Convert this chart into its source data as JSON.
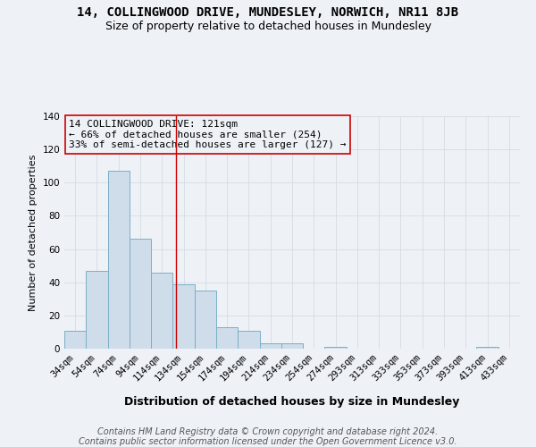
{
  "title": "14, COLLINGWOOD DRIVE, MUNDESLEY, NORWICH, NR11 8JB",
  "subtitle": "Size of property relative to detached houses in Mundesley",
  "xlabel": "Distribution of detached houses by size in Mundesley",
  "ylabel": "Number of detached properties",
  "bar_labels": [
    "34sqm",
    "54sqm",
    "74sqm",
    "94sqm",
    "114sqm",
    "134sqm",
    "154sqm",
    "174sqm",
    "194sqm",
    "214sqm",
    "234sqm",
    "254sqm",
    "274sqm",
    "293sqm",
    "313sqm",
    "333sqm",
    "353sqm",
    "373sqm",
    "393sqm",
    "413sqm",
    "433sqm"
  ],
  "bar_values": [
    11,
    47,
    107,
    66,
    46,
    39,
    35,
    13,
    11,
    3,
    3,
    0,
    1,
    0,
    0,
    0,
    0,
    0,
    0,
    1,
    0
  ],
  "bar_color": "#cfdcea",
  "bar_edge_color": "#7aafc8",
  "annotation_box_text": "14 COLLINGWOOD DRIVE: 121sqm\n← 66% of detached houses are smaller (254)\n33% of semi-detached houses are larger (127) →",
  "annotation_box_edge_color": "#cc0000",
  "vline_x": 4.65,
  "vline_color": "#cc0000",
  "ylim": [
    0,
    140
  ],
  "yticks": [
    0,
    20,
    40,
    60,
    80,
    100,
    120,
    140
  ],
  "footer_line1": "Contains HM Land Registry data © Crown copyright and database right 2024.",
  "footer_line2": "Contains public sector information licensed under the Open Government Licence v3.0.",
  "background_color": "#eef2f7",
  "grid_color": "#d0d8e0",
  "title_fontsize": 10,
  "subtitle_fontsize": 9,
  "xlabel_fontsize": 9,
  "ylabel_fontsize": 8,
  "tick_fontsize": 7.5,
  "annot_fontsize": 8,
  "footer_fontsize": 7
}
